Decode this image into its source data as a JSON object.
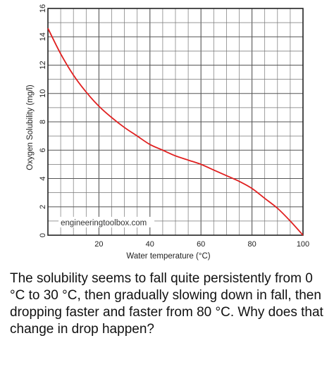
{
  "chart_data": {
    "type": "line",
    "xlabel": "Water temperature (°C)",
    "ylabel": "Oxygen Solubility (mg/l)",
    "xlim": [
      0,
      100
    ],
    "ylim": [
      0,
      16
    ],
    "x_ticks": [
      20,
      40,
      60,
      80,
      100
    ],
    "y_ticks": [
      0,
      2,
      4,
      6,
      8,
      10,
      12,
      14,
      16
    ],
    "grid": true,
    "line_color": "#e02020",
    "watermark": "engineeringtoolbox.com",
    "series": [
      {
        "x": [
          0,
          5,
          10,
          15,
          20,
          25,
          30,
          35,
          40,
          45,
          50,
          55,
          60,
          65,
          70,
          75,
          80,
          85,
          90,
          95,
          100
        ],
        "y": [
          14.6,
          12.8,
          11.3,
          10.1,
          9.1,
          8.3,
          7.6,
          7.0,
          6.4,
          6.0,
          5.6,
          5.3,
          5.0,
          4.6,
          4.2,
          3.8,
          3.3,
          2.6,
          1.9,
          1.0,
          0.0
        ]
      }
    ]
  },
  "question": "The solubility seems to fall quite persistently from 0 °C to 30 °C, then gradually slowing down in fall, then dropping faster and faster from 80 °C. Why does that change in drop happen?"
}
